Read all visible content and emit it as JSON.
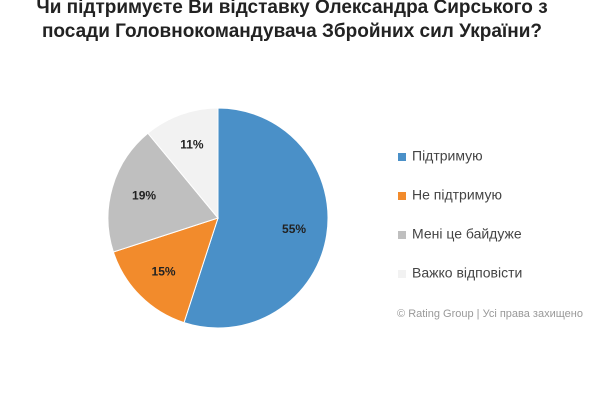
{
  "chart_data": {
    "type": "pie",
    "title": [
      "Чи підтримуєте Ви відставку Олександра Сирського з",
      "посади Головнокомандувача Збройних сил України?"
    ],
    "categories": [
      "Підтримую",
      "Не підтримую",
      "Мені це байдуже",
      "Важко відповісти"
    ],
    "values": [
      55,
      15,
      19,
      11
    ],
    "value_labels": [
      "55%",
      "15%",
      "19%",
      "11%"
    ],
    "colors": [
      "#4a90c8",
      "#f28b2c",
      "#bfbfbf",
      "#f2f2f2"
    ],
    "source": "© Rating Group | Усі права захищено"
  }
}
